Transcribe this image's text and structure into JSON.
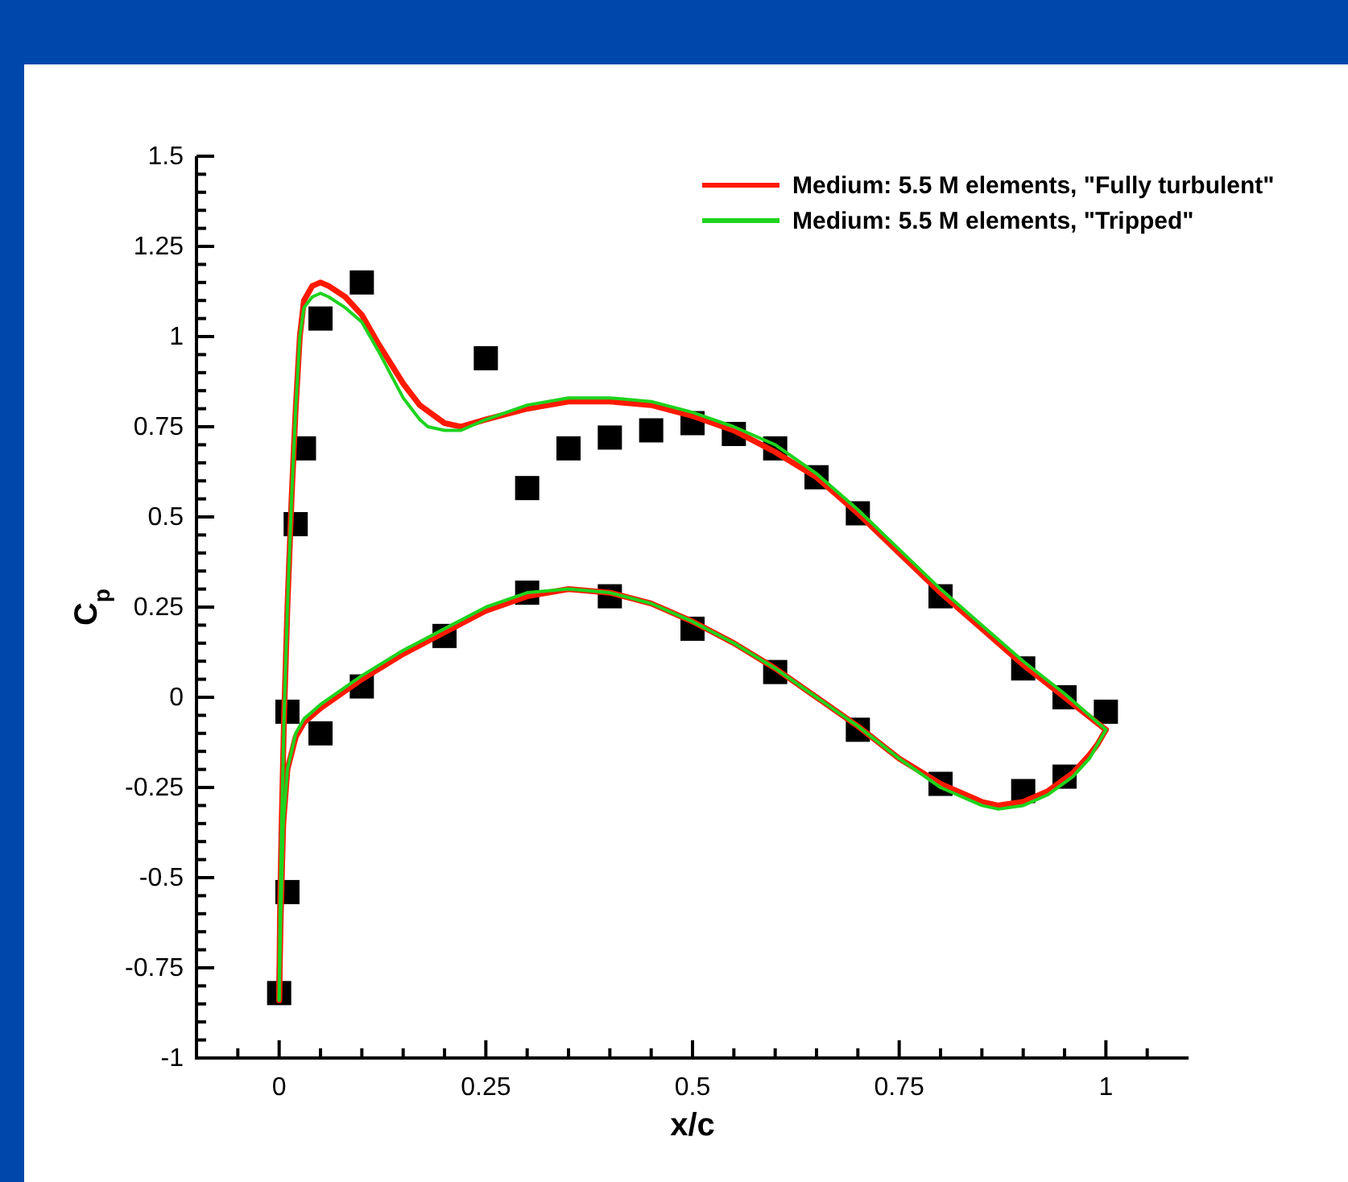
{
  "chart_data": {
    "type": "line",
    "xlabel": "x/c",
    "ylabel": "C$_{p}$",
    "xlim": [
      -0.1,
      1.1
    ],
    "xticks": [
      {
        "value": -0.05,
        "label": null
      },
      0,
      {
        "value": 0.05,
        "label": null
      },
      {
        "value": 0.1,
        "label": null
      },
      {
        "value": 0.15,
        "label": null
      },
      {
        "value": 0.2,
        "label": null
      },
      0.25,
      {
        "value": 0.3,
        "label": null
      },
      {
        "value": 0.35,
        "label": null
      },
      {
        "value": 0.4,
        "label": null
      },
      {
        "value": 0.45,
        "label": null
      },
      0.5,
      {
        "value": 0.55,
        "label": null
      },
      {
        "value": 0.6,
        "label": null
      },
      {
        "value": 0.65,
        "label": null
      },
      {
        "value": 0.7,
        "label": null
      },
      0.75,
      {
        "value": 0.8,
        "label": null
      },
      {
        "value": 0.85,
        "label": null
      },
      {
        "value": 0.9,
        "label": null
      },
      {
        "value": 0.95,
        "label": null
      },
      1,
      {
        "value": 1.05,
        "label": null
      }
    ],
    "ylim": [
      -1,
      1.5
    ],
    "yticks": [
      -1,
      {
        "value": -0.95,
        "label": null
      },
      {
        "value": -0.9,
        "label": null
      },
      {
        "value": -0.85,
        "label": null
      },
      {
        "value": -0.8,
        "label": null
      },
      -0.75,
      {
        "value": -0.7,
        "label": null
      },
      {
        "value": -0.65,
        "label": null
      },
      {
        "value": -0.6,
        "label": null
      },
      {
        "value": -0.55,
        "label": null
      },
      -0.5,
      {
        "value": -0.45,
        "label": null
      },
      {
        "value": -0.4,
        "label": null
      },
      {
        "value": -0.35,
        "label": null
      },
      {
        "value": -0.3,
        "label": null
      },
      -0.25,
      {
        "value": -0.2,
        "label": null
      },
      {
        "value": -0.15,
        "label": null
      },
      {
        "value": -0.1,
        "label": null
      },
      {
        "value": -0.05,
        "label": null
      },
      0,
      {
        "value": 0.05,
        "label": null
      },
      {
        "value": 0.1,
        "label": null
      },
      {
        "value": 0.15,
        "label": null
      },
      {
        "value": 0.2,
        "label": null
      },
      0.25,
      {
        "value": 0.3,
        "label": null
      },
      {
        "value": 0.35,
        "label": null
      },
      {
        "value": 0.4,
        "label": null
      },
      {
        "value": 0.45,
        "label": null
      },
      0.5,
      {
        "value": 0.55,
        "label": null
      },
      {
        "value": 0.6,
        "label": null
      },
      {
        "value": 0.65,
        "label": null
      },
      {
        "value": 0.7,
        "label": null
      },
      0.75,
      {
        "value": 0.8,
        "label": null
      },
      {
        "value": 0.85,
        "label": null
      },
      {
        "value": 0.9,
        "label": null
      },
      {
        "value": 0.95,
        "label": null
      },
      1,
      {
        "value": 1.05,
        "label": null
      },
      {
        "value": 1.1,
        "label": null
      },
      {
        "value": 1.15,
        "label": null
      },
      {
        "value": 1.2,
        "label": null
      },
      1.25,
      {
        "value": 1.3,
        "label": null
      },
      {
        "value": 1.35,
        "label": null
      },
      {
        "value": 1.4,
        "label": null
      },
      {
        "value": 1.45,
        "label": null
      },
      1.5
    ],
    "grid": false,
    "legend": "top right",
    "marker": "none",
    "line_style": "solid",
    "series": [
      {
        "name": "Medium: 5.5 M elements, \"Fully turbulent\"",
        "color": "#ff1a00",
        "x": [
          0,
          0.001,
          0.003,
          0.006,
          0.01,
          0.015,
          0.02,
          0.025,
          0.03,
          0.04,
          0.05,
          0.06,
          0.08,
          0.1,
          0.12,
          0.15,
          0.17,
          0.2,
          0.22,
          0.25,
          0.3,
          0.35,
          0.4,
          0.45,
          0.5,
          0.55,
          0.6,
          0.65,
          0.7,
          0.75,
          0.8,
          0.85,
          0.9,
          0.95,
          1
        ],
        "values": [
          -0.84,
          -0.6,
          -0.35,
          -0.05,
          0.25,
          0.55,
          0.8,
          1.0,
          1.1,
          1.14,
          1.15,
          1.14,
          1.11,
          1.06,
          0.98,
          0.87,
          0.81,
          0.76,
          0.75,
          0.77,
          0.8,
          0.82,
          0.82,
          0.81,
          0.78,
          0.74,
          0.68,
          0.61,
          0.51,
          0.4,
          0.29,
          0.19,
          0.09,
          0.0,
          -0.09
        ]
      },
      {
        "color": "#ff1a00",
        "x": [
          0,
          0.002,
          0.005,
          0.01,
          0.02,
          0.03,
          0.05,
          0.1,
          0.15,
          0.2,
          0.25,
          0.3,
          0.35,
          0.4,
          0.45,
          0.5,
          0.55,
          0.6,
          0.65,
          0.7,
          0.75,
          0.8,
          0.85,
          0.87,
          0.9,
          0.93,
          0.96,
          0.98,
          0.99,
          1
        ],
        "values": [
          -0.84,
          -0.6,
          -0.35,
          -0.2,
          -0.11,
          -0.07,
          -0.03,
          0.05,
          0.12,
          0.18,
          0.24,
          0.28,
          0.3,
          0.29,
          0.26,
          0.21,
          0.15,
          0.08,
          0.0,
          -0.08,
          -0.17,
          -0.24,
          -0.29,
          -0.3,
          -0.29,
          -0.26,
          -0.21,
          -0.16,
          -0.13,
          -0.09
        ]
      },
      {
        "name": "Medium: 5.5 M elements, \"Tripped\"",
        "color": "#1ed31e",
        "x": [
          0,
          0.001,
          0.003,
          0.006,
          0.01,
          0.015,
          0.02,
          0.025,
          0.03,
          0.04,
          0.05,
          0.06,
          0.08,
          0.1,
          0.12,
          0.15,
          0.17,
          0.18,
          0.2,
          0.22,
          0.25,
          0.3,
          0.35,
          0.4,
          0.45,
          0.5,
          0.55,
          0.6,
          0.65,
          0.7,
          0.75,
          0.8,
          0.85,
          0.9,
          0.95,
          1
        ],
        "values": [
          -0.84,
          -0.6,
          -0.35,
          -0.05,
          0.25,
          0.55,
          0.8,
          1.0,
          1.08,
          1.11,
          1.12,
          1.11,
          1.08,
          1.04,
          0.96,
          0.83,
          0.77,
          0.75,
          0.74,
          0.74,
          0.77,
          0.81,
          0.83,
          0.83,
          0.82,
          0.79,
          0.75,
          0.7,
          0.62,
          0.52,
          0.41,
          0.3,
          0.2,
          0.1,
          0.01,
          -0.09
        ]
      },
      {
        "color": "#1ed31e",
        "x": [
          0,
          0.002,
          0.005,
          0.01,
          0.02,
          0.03,
          0.05,
          0.1,
          0.15,
          0.2,
          0.25,
          0.3,
          0.35,
          0.4,
          0.45,
          0.5,
          0.55,
          0.6,
          0.65,
          0.7,
          0.75,
          0.8,
          0.85,
          0.87,
          0.9,
          0.93,
          0.96,
          0.98,
          0.99,
          1
        ],
        "values": [
          -0.84,
          -0.6,
          -0.35,
          -0.2,
          -0.1,
          -0.06,
          -0.02,
          0.06,
          0.13,
          0.19,
          0.25,
          0.29,
          0.3,
          0.29,
          0.26,
          0.21,
          0.15,
          0.08,
          0.0,
          -0.08,
          -0.17,
          -0.25,
          -0.3,
          -0.31,
          -0.3,
          -0.27,
          -0.22,
          -0.17,
          -0.13,
          -0.09
        ]
      },
      {
        "type": "scatter",
        "color": "#000000",
        "marker": "square",
        "x": [
          0,
          0.01,
          0.01,
          0.02,
          0.03,
          0.05,
          0.05,
          0.1,
          0.1,
          0.2,
          0.25,
          0.3,
          0.3,
          0.35,
          0.4,
          0.4,
          0.45,
          0.5,
          0.5,
          0.55,
          0.6,
          0.6,
          0.65,
          0.7,
          0.7,
          0.8,
          0.8,
          0.9,
          0.9,
          0.95,
          0.95,
          1
        ],
        "values": [
          -0.82,
          -0.54,
          -0.04,
          0.48,
          0.69,
          1.05,
          -0.1,
          1.15,
          0.03,
          0.17,
          0.94,
          0.58,
          0.29,
          0.69,
          0.72,
          0.28,
          0.74,
          0.76,
          0.19,
          0.73,
          0.69,
          0.07,
          0.61,
          0.51,
          -0.09,
          0.28,
          -0.24,
          0.08,
          -0.26,
          0.0,
          -0.22,
          -0.04
        ]
      }
    ]
  }
}
